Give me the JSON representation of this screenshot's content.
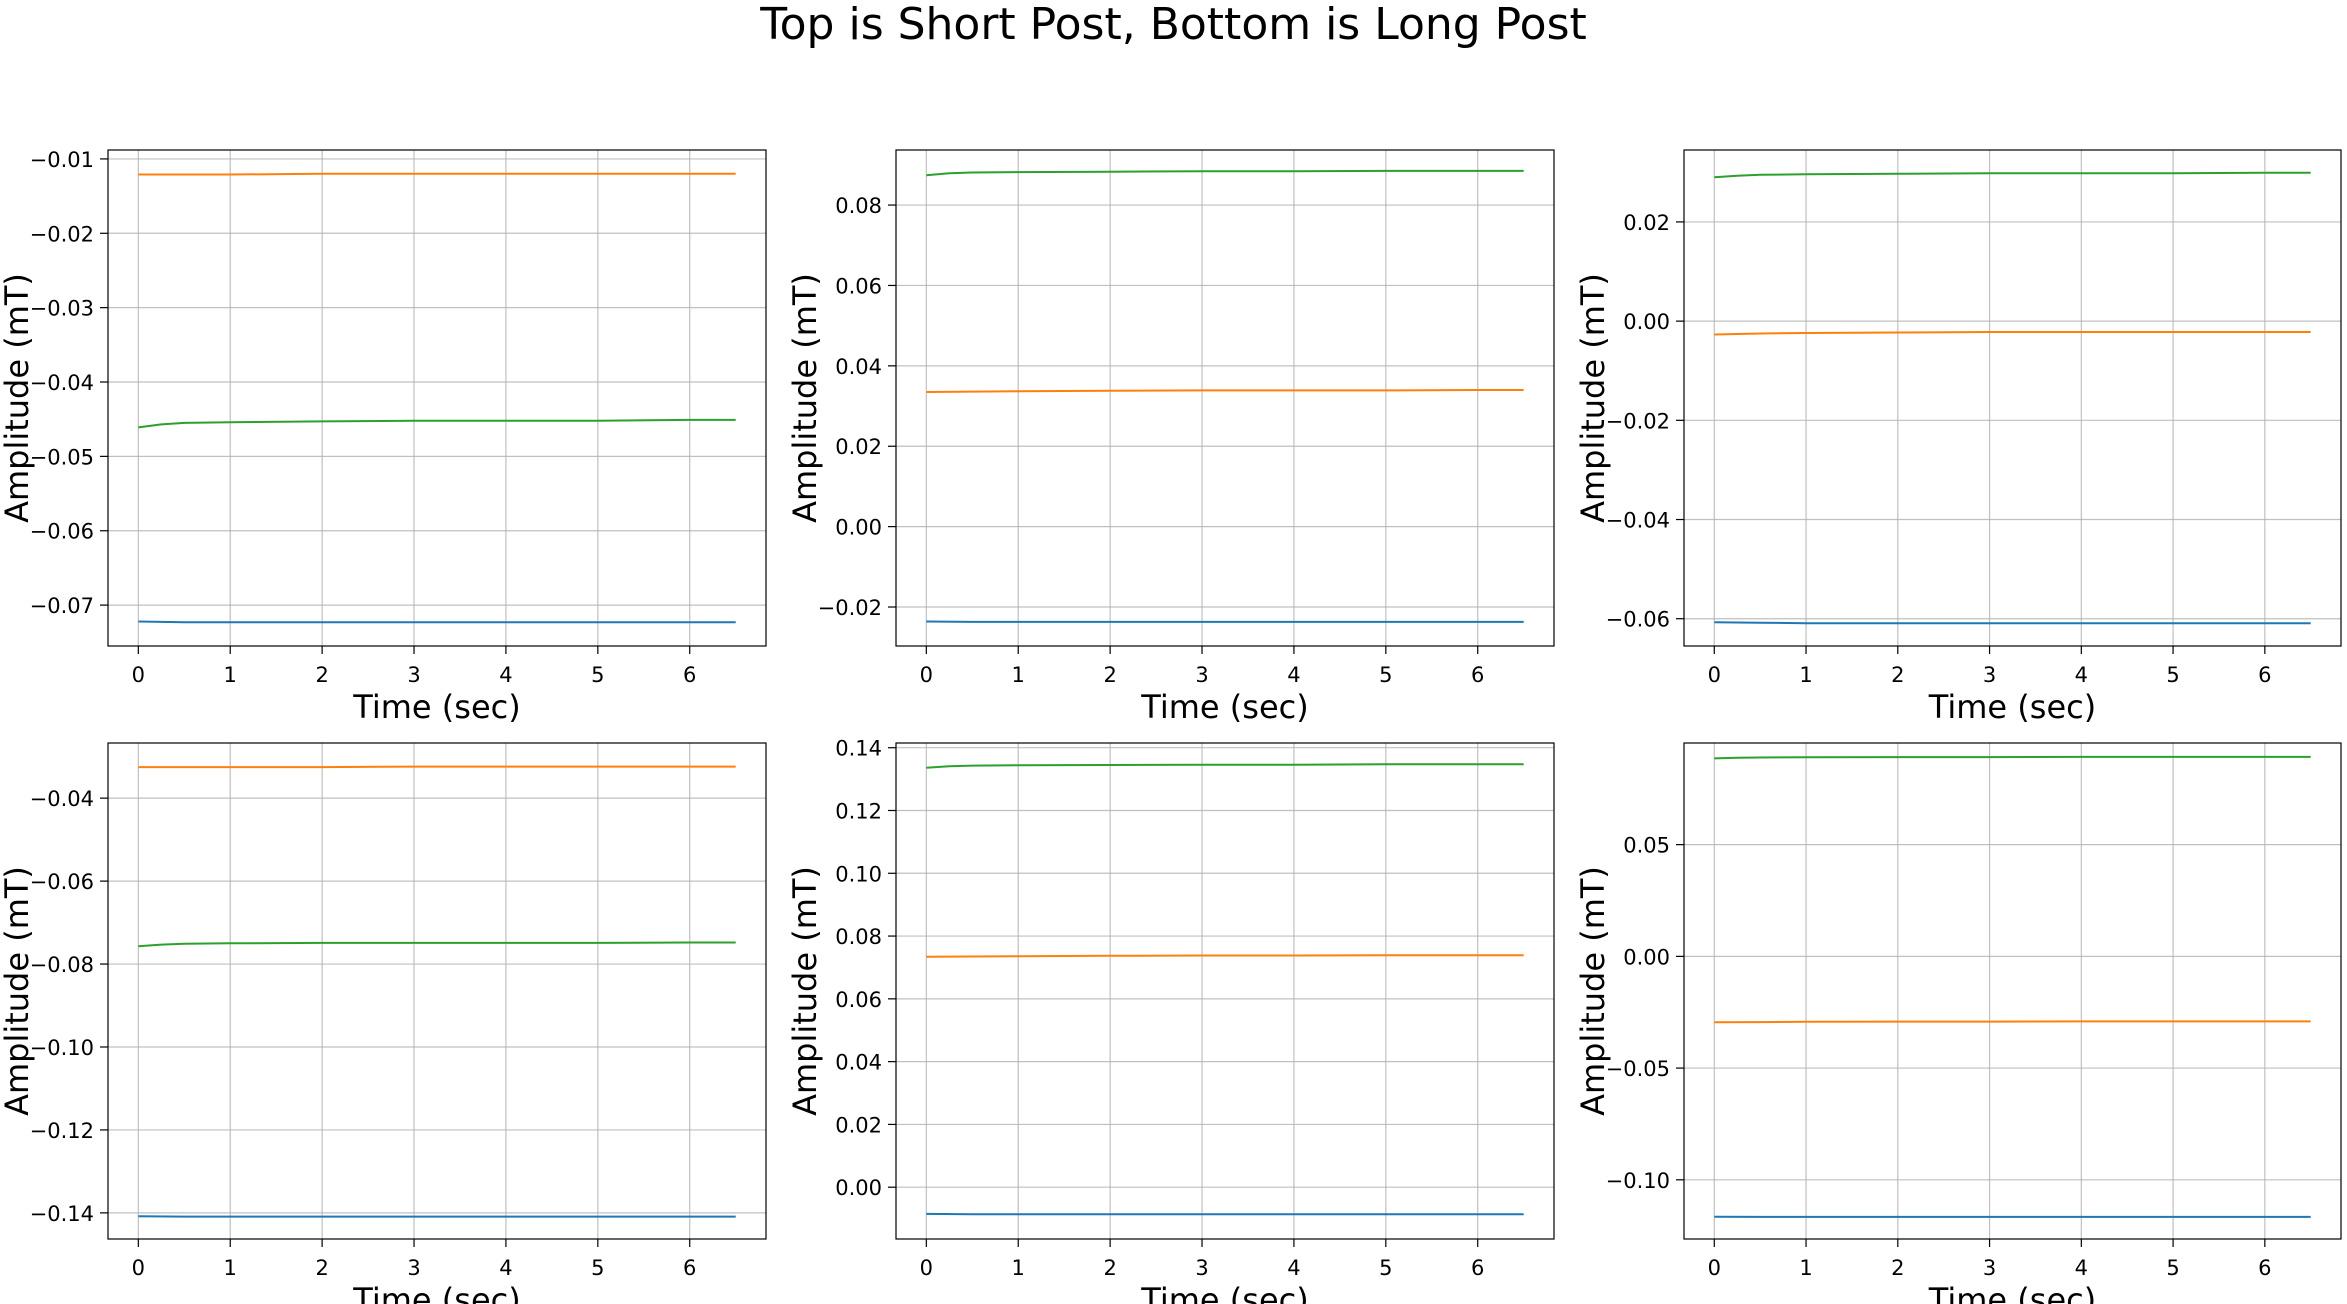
{
  "figure": {
    "suptitle": "Top is Short Post, Bottom is Long Post",
    "series_colors": [
      "#1f77b4",
      "#ff7f0e",
      "#2ca02c"
    ]
  },
  "chart_data": [
    {
      "type": "line",
      "xlabel": "Time (sec)",
      "ylabel": "Amplitude (mT)",
      "xlim": [
        -0.33,
        6.83
      ],
      "ylim": [
        -0.0755,
        -0.0088
      ],
      "xticks": [
        "0",
        "1",
        "2",
        "3",
        "4",
        "5",
        "6"
      ],
      "yticks": [
        "-0.07",
        "-0.06",
        "-0.05",
        "-0.04",
        "-0.03",
        "-0.02",
        "-0.01"
      ],
      "grid": true,
      "series": [
        {
          "color": "#1f77b4",
          "x": [
            0,
            0.5,
            1,
            2,
            3,
            4,
            5,
            6,
            6.5
          ],
          "y": [
            -0.0722,
            -0.0723,
            -0.0723,
            -0.0723,
            -0.0723,
            -0.0723,
            -0.0723,
            -0.0723,
            -0.0723
          ]
        },
        {
          "color": "#ff7f0e",
          "x": [
            0,
            0.5,
            1,
            2,
            3,
            4,
            5,
            6,
            6.5
          ],
          "y": [
            -0.0121,
            -0.0121,
            -0.0121,
            -0.012,
            -0.012,
            -0.012,
            -0.012,
            -0.012,
            -0.012
          ]
        },
        {
          "color": "#2ca02c",
          "x": [
            0,
            0.25,
            0.5,
            1,
            2,
            3,
            4,
            5,
            6,
            6.5
          ],
          "y": [
            -0.0461,
            -0.0457,
            -0.0455,
            -0.0454,
            -0.0453,
            -0.0452,
            -0.0452,
            -0.0452,
            -0.0451,
            -0.0451
          ]
        }
      ]
    },
    {
      "type": "line",
      "xlabel": "Time (sec)",
      "ylabel": "Amplitude (mT)",
      "xlim": [
        -0.33,
        6.83
      ],
      "ylim": [
        -0.0297,
        0.0937
      ],
      "xticks": [
        "0",
        "1",
        "2",
        "3",
        "4",
        "5",
        "6"
      ],
      "yticks": [
        "-0.02",
        "0.00",
        "0.02",
        "0.04",
        "0.06",
        "0.08"
      ],
      "grid": true,
      "series": [
        {
          "color": "#1f77b4",
          "x": [
            0,
            0.5,
            1,
            2,
            3,
            4,
            5,
            6,
            6.5
          ],
          "y": [
            -0.0236,
            -0.0237,
            -0.0237,
            -0.0237,
            -0.0237,
            -0.0237,
            -0.0237,
            -0.0237,
            -0.0237
          ]
        },
        {
          "color": "#ff7f0e",
          "x": [
            0,
            0.5,
            1,
            2,
            3,
            4,
            5,
            6,
            6.5
          ],
          "y": [
            0.0335,
            0.0336,
            0.0337,
            0.0338,
            0.0339,
            0.0339,
            0.0339,
            0.034,
            0.034
          ]
        },
        {
          "color": "#2ca02c",
          "x": [
            0,
            0.25,
            0.5,
            1,
            2,
            3,
            4,
            5,
            6,
            6.5
          ],
          "y": [
            0.0874,
            0.0879,
            0.0881,
            0.0882,
            0.0883,
            0.0884,
            0.0884,
            0.0885,
            0.0885,
            0.0885
          ]
        }
      ]
    },
    {
      "type": "line",
      "xlabel": "Time (sec)",
      "ylabel": "Amplitude (mT)",
      "xlim": [
        -0.33,
        6.83
      ],
      "ylim": [
        -0.0655,
        0.0345
      ],
      "xticks": [
        "0",
        "1",
        "2",
        "3",
        "4",
        "5",
        "6"
      ],
      "yticks": [
        "-0.06",
        "-0.04",
        "-0.02",
        "0.00",
        "0.02"
      ],
      "grid": true,
      "series": [
        {
          "color": "#1f77b4",
          "x": [
            0,
            0.5,
            1,
            2,
            3,
            4,
            5,
            6,
            6.5
          ],
          "y": [
            -0.0607,
            -0.0608,
            -0.0609,
            -0.0609,
            -0.0609,
            -0.0609,
            -0.0609,
            -0.0609,
            -0.0609
          ]
        },
        {
          "color": "#ff7f0e",
          "x": [
            0,
            0.5,
            1,
            2,
            3,
            4,
            5,
            6,
            6.5
          ],
          "y": [
            -0.0027,
            -0.0025,
            -0.0024,
            -0.0023,
            -0.0022,
            -0.0022,
            -0.0022,
            -0.0022,
            -0.0022
          ]
        },
        {
          "color": "#2ca02c",
          "x": [
            0,
            0.25,
            0.5,
            1,
            2,
            3,
            4,
            5,
            6,
            6.5
          ],
          "y": [
            0.029,
            0.0293,
            0.0295,
            0.0296,
            0.0297,
            0.0298,
            0.0298,
            0.0298,
            0.0299,
            0.0299
          ]
        }
      ]
    },
    {
      "type": "line",
      "xlabel": "Time (sec)",
      "ylabel": "Amplitude (mT)",
      "xlim": [
        -0.33,
        6.83
      ],
      "ylim": [
        -0.1463,
        -0.0267
      ],
      "xticks": [
        "0",
        "1",
        "2",
        "3",
        "4",
        "5",
        "6"
      ],
      "yticks": [
        "-0.14",
        "-0.12",
        "-0.10",
        "-0.08",
        "-0.06",
        "-0.04"
      ],
      "grid": true,
      "series": [
        {
          "color": "#1f77b4",
          "x": [
            0,
            0.5,
            1,
            2,
            3,
            4,
            5,
            6,
            6.5
          ],
          "y": [
            -0.1408,
            -0.1409,
            -0.1409,
            -0.1409,
            -0.1409,
            -0.1409,
            -0.1409,
            -0.1409,
            -0.1409
          ]
        },
        {
          "color": "#ff7f0e",
          "x": [
            0,
            0.5,
            1,
            2,
            3,
            4,
            5,
            6,
            6.5
          ],
          "y": [
            -0.0325,
            -0.0325,
            -0.0325,
            -0.0325,
            -0.0324,
            -0.0324,
            -0.0324,
            -0.0324,
            -0.0324
          ]
        },
        {
          "color": "#2ca02c",
          "x": [
            0,
            0.25,
            0.5,
            1,
            2,
            3,
            4,
            5,
            6,
            6.5
          ],
          "y": [
            -0.0757,
            -0.0753,
            -0.0751,
            -0.075,
            -0.0749,
            -0.0749,
            -0.0749,
            -0.0749,
            -0.0748,
            -0.0748
          ]
        }
      ]
    },
    {
      "type": "line",
      "xlabel": "Time (sec)",
      "ylabel": "Amplitude (mT)",
      "xlim": [
        -0.33,
        6.83
      ],
      "ylim": [
        -0.0165,
        0.1415
      ],
      "xticks": [
        "0",
        "1",
        "2",
        "3",
        "4",
        "5",
        "6"
      ],
      "yticks": [
        "0.00",
        "0.02",
        "0.04",
        "0.06",
        "0.08",
        "0.10",
        "0.12",
        "0.14"
      ],
      "grid": true,
      "series": [
        {
          "color": "#1f77b4",
          "x": [
            0,
            0.5,
            1,
            2,
            3,
            4,
            5,
            6,
            6.5
          ],
          "y": [
            -0.0085,
            -0.0086,
            -0.0086,
            -0.0086,
            -0.0086,
            -0.0086,
            -0.0086,
            -0.0086,
            -0.0086
          ]
        },
        {
          "color": "#ff7f0e",
          "x": [
            0,
            0.5,
            1,
            2,
            3,
            4,
            5,
            6,
            6.5
          ],
          "y": [
            0.0734,
            0.0735,
            0.0736,
            0.0737,
            0.0738,
            0.0738,
            0.0739,
            0.0739,
            0.0739
          ]
        },
        {
          "color": "#2ca02c",
          "x": [
            0,
            0.25,
            0.5,
            1,
            2,
            3,
            4,
            5,
            6,
            6.5
          ],
          "y": [
            0.1336,
            0.1341,
            0.1343,
            0.1344,
            0.1345,
            0.1346,
            0.1346,
            0.1347,
            0.1347,
            0.1347
          ]
        }
      ]
    },
    {
      "type": "line",
      "xlabel": "Time (sec)",
      "ylabel": "Amplitude (mT)",
      "xlim": [
        -0.33,
        6.83
      ],
      "ylim": [
        -0.1265,
        0.0955
      ],
      "xticks": [
        "0",
        "1",
        "2",
        "3",
        "4",
        "5",
        "6"
      ],
      "yticks": [
        "-0.10",
        "-0.05",
        "0.00",
        "0.05"
      ],
      "grid": true,
      "series": [
        {
          "color": "#1f77b4",
          "x": [
            0,
            0.5,
            1,
            2,
            3,
            4,
            5,
            6,
            6.5
          ],
          "y": [
            -0.1165,
            -0.1166,
            -0.1166,
            -0.1166,
            -0.1166,
            -0.1166,
            -0.1166,
            -0.1166,
            -0.1166
          ]
        },
        {
          "color": "#ff7f0e",
          "x": [
            0,
            0.5,
            1,
            2,
            3,
            4,
            5,
            6,
            6.5
          ],
          "y": [
            -0.0295,
            -0.0294,
            -0.0293,
            -0.0292,
            -0.0292,
            -0.0291,
            -0.0291,
            -0.0291,
            -0.0291
          ]
        },
        {
          "color": "#2ca02c",
          "x": [
            0,
            0.25,
            0.5,
            1,
            2,
            3,
            4,
            5,
            6,
            6.5
          ],
          "y": [
            0.0886,
            0.0889,
            0.089,
            0.0891,
            0.0892,
            0.0892,
            0.0893,
            0.0893,
            0.0893,
            0.0893
          ]
        }
      ]
    }
  ]
}
